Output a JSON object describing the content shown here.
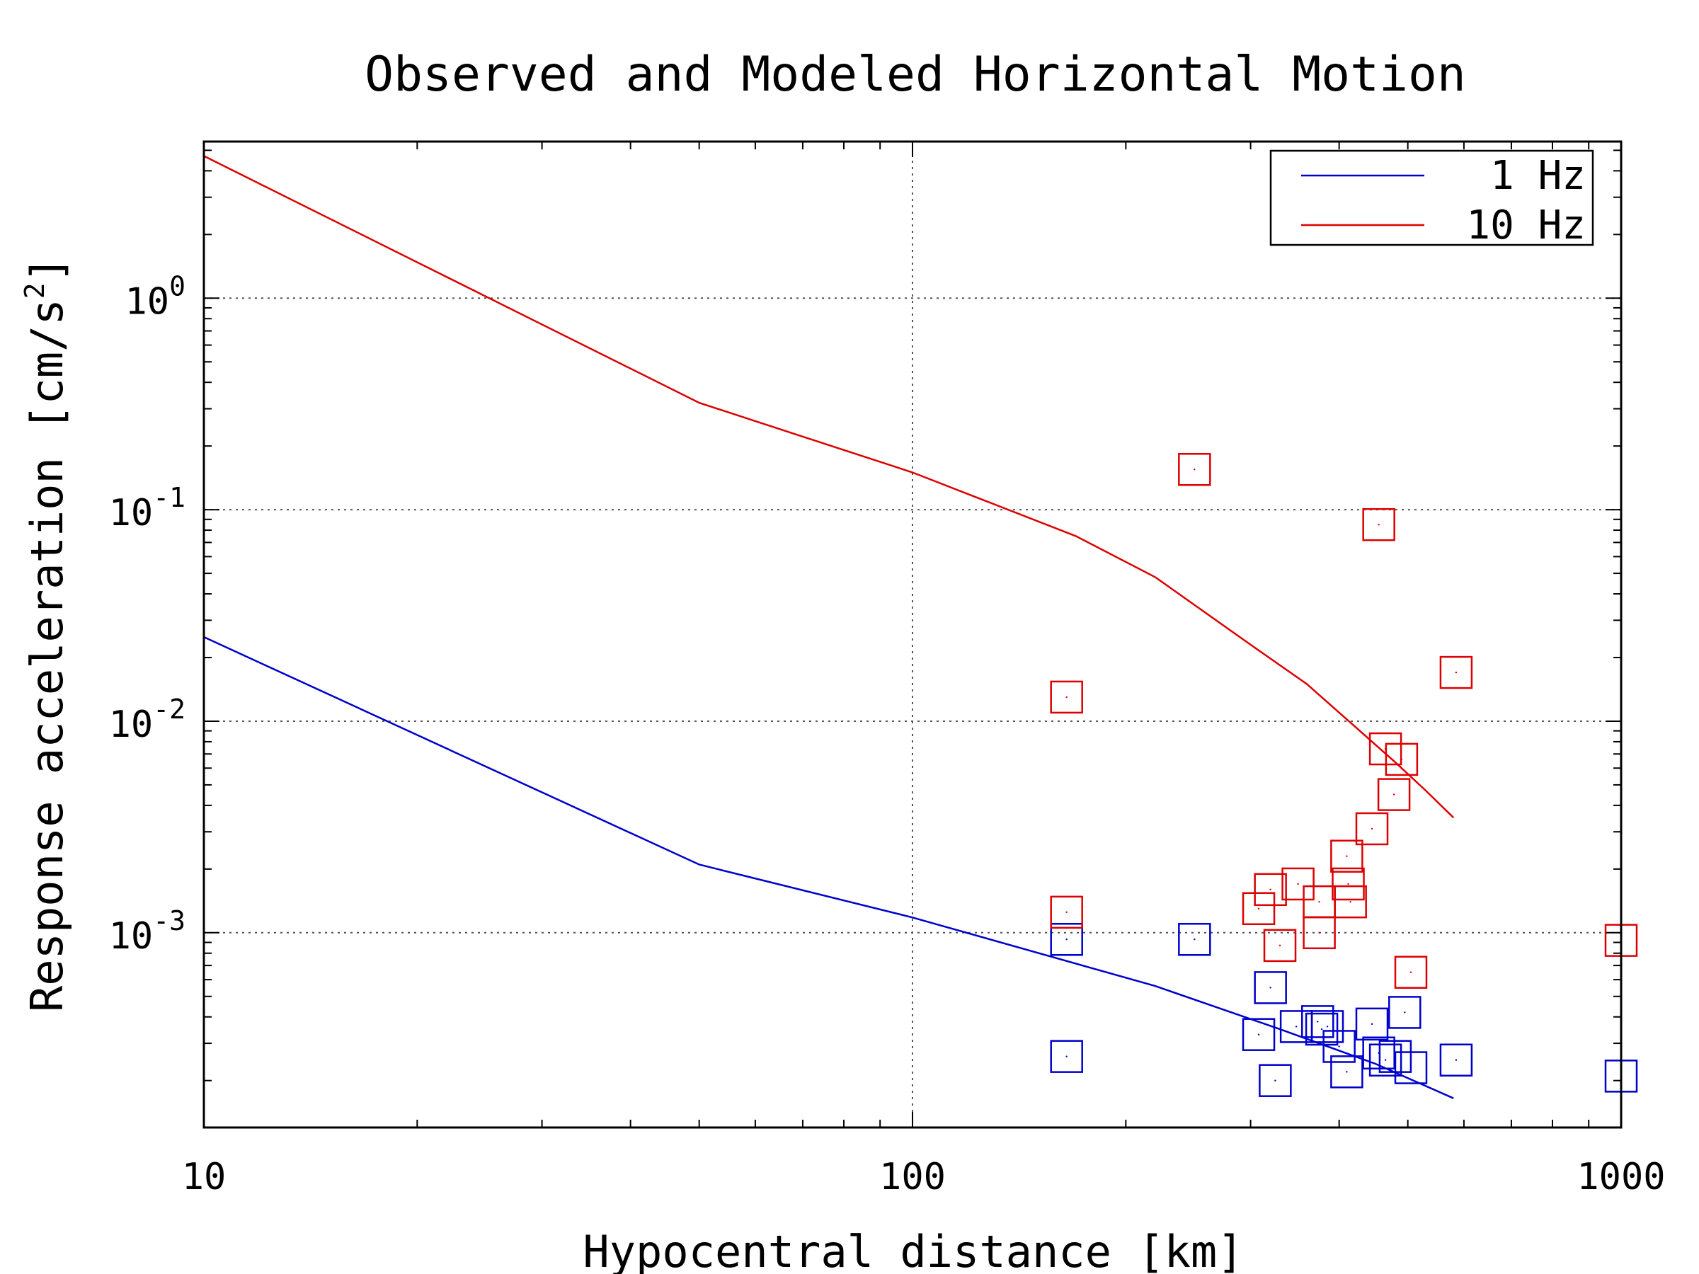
{
  "chart_data": {
    "type": "scatter",
    "title": "Observed and Modeled Horizontal Motion",
    "xlabel": "Hypocentral distance [km]",
    "ylabel": "Response acceleration [cm/s",
    "ylabel_superscript": "2",
    "ylabel_suffix": "]",
    "xscale": "log",
    "yscale": "log",
    "xlim": [
      10,
      1000
    ],
    "ylim": [
      0.00012,
      5.5
    ],
    "grid": true,
    "legend_position": "top-right",
    "x_ticks": [
      {
        "value": 10,
        "label": "10"
      },
      {
        "value": 100,
        "label": "100"
      },
      {
        "value": 1000,
        "label": "1000"
      }
    ],
    "y_ticks": [
      {
        "value": 1,
        "base": "10",
        "exp": "0"
      },
      {
        "value": 0.1,
        "base": "10",
        "exp": "-1"
      },
      {
        "value": 0.01,
        "base": "10",
        "exp": "-2"
      },
      {
        "value": 0.001,
        "base": "10",
        "exp": "-3"
      }
    ],
    "series": [
      {
        "name": "1 Hz",
        "color": "#0000cc",
        "model_line": {
          "x": [
            10,
            50,
            100,
            220,
            330,
            450,
            580
          ],
          "y": [
            0.025,
            0.0021,
            0.00118,
            0.00056,
            0.00035,
            0.00024,
            0.000165
          ]
        },
        "observed": {
          "x": [
            165,
            165,
            250,
            308,
            320,
            325,
            348,
            373,
            378,
            385,
            400,
            410,
            445,
            455,
            465,
            480,
            495,
            505,
            585,
            1000
          ],
          "y": [
            0.00093,
            0.00026,
            0.00093,
            0.00033,
            0.00055,
            0.0002,
            0.00036,
            0.00038,
            0.00035,
            0.00036,
            0.00029,
            0.00022,
            0.00037,
            0.00027,
            0.00025,
            0.00026,
            0.00042,
            0.00023,
            0.00025,
            0.00021
          ]
        }
      },
      {
        "name": "10 Hz",
        "color": "#dd0000",
        "model_line": {
          "x": [
            10,
            50,
            100,
            170,
            220,
            300,
            360,
            420,
            480,
            530,
            580
          ],
          "y": [
            4.7,
            0.32,
            0.15,
            0.075,
            0.048,
            0.023,
            0.015,
            0.0095,
            0.0064,
            0.0047,
            0.0035
          ]
        },
        "observed": {
          "x": [
            250,
            455,
            165,
            585,
            465,
            490,
            478,
            445,
            410,
            412,
            415,
            350,
            320,
            308,
            375,
            330,
            375,
            505,
            165,
            1000
          ],
          "y": [
            0.155,
            0.085,
            0.013,
            0.017,
            0.0074,
            0.0066,
            0.0045,
            0.0031,
            0.0023,
            0.0017,
            0.0014,
            0.0017,
            0.0016,
            0.0013,
            0.0014,
            0.00087,
            0.001,
            0.00065,
            0.00125,
            0.00092
          ]
        }
      }
    ]
  }
}
